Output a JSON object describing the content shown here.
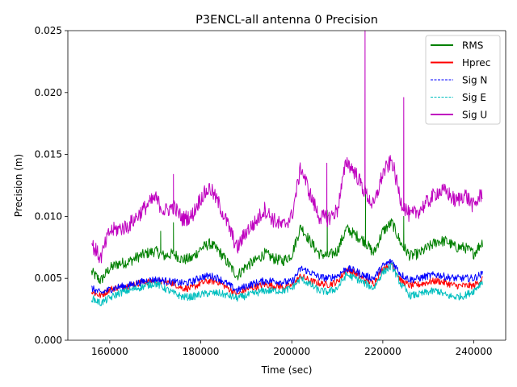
{
  "chart_data": {
    "type": "line",
    "title": "P3ENCL-all antenna 0 Precision",
    "xlabel": "Time (sec)",
    "ylabel": "Precision (m)",
    "xlim": [
      150800,
      247000
    ],
    "ylim": [
      0,
      0.025
    ],
    "xticks": [
      160000,
      180000,
      200000,
      220000,
      240000
    ],
    "xtick_labels": [
      "160000",
      "180000",
      "200000",
      "220000",
      "240000"
    ],
    "yticks": [
      0.0,
      0.005,
      0.01,
      0.015,
      0.02,
      0.025
    ],
    "ytick_labels": [
      "0.000",
      "0.005",
      "0.010",
      "0.015",
      "0.020",
      "0.025"
    ],
    "grid": false,
    "legend_position": "top-right",
    "series": [
      {
        "name": "RMS",
        "color": "#008000",
        "style": "solid",
        "x": [
          156000,
          158000,
          160000,
          162000,
          164000,
          166000,
          168000,
          170000,
          172000,
          174000,
          176000,
          178000,
          180000,
          182000,
          184000,
          186000,
          188000,
          190000,
          192000,
          194000,
          196000,
          198000,
          200000,
          202000,
          204000,
          206000,
          208000,
          210000,
          212000,
          214000,
          216000,
          218000,
          220000,
          222000,
          224000,
          226000,
          228000,
          230000,
          232000,
          234000,
          236000,
          238000,
          240000,
          242000
        ],
        "y": [
          0.0055,
          0.0048,
          0.0058,
          0.0062,
          0.0063,
          0.0067,
          0.007,
          0.0072,
          0.0068,
          0.007,
          0.0065,
          0.0066,
          0.0074,
          0.0078,
          0.0072,
          0.0062,
          0.0052,
          0.006,
          0.0064,
          0.007,
          0.0066,
          0.0064,
          0.0069,
          0.0092,
          0.008,
          0.007,
          0.0068,
          0.0072,
          0.009,
          0.0085,
          0.008,
          0.007,
          0.0088,
          0.0095,
          0.0078,
          0.0068,
          0.007,
          0.0075,
          0.008,
          0.008,
          0.0075,
          0.0075,
          0.007,
          0.008
        ]
      },
      {
        "name": "Hprec",
        "color": "#ff0000",
        "style": "solid",
        "x": [
          156000,
          158000,
          160000,
          162000,
          164000,
          166000,
          168000,
          170000,
          172000,
          174000,
          176000,
          178000,
          180000,
          182000,
          184000,
          186000,
          188000,
          190000,
          192000,
          194000,
          196000,
          198000,
          200000,
          202000,
          204000,
          206000,
          208000,
          210000,
          212000,
          214000,
          216000,
          218000,
          220000,
          222000,
          224000,
          226000,
          228000,
          230000,
          232000,
          234000,
          236000,
          238000,
          240000,
          242000
        ],
        "y": [
          0.0039,
          0.0036,
          0.0041,
          0.0043,
          0.0044,
          0.0046,
          0.0047,
          0.0048,
          0.0047,
          0.0046,
          0.0042,
          0.0042,
          0.0046,
          0.0048,
          0.0047,
          0.0042,
          0.0037,
          0.0041,
          0.0043,
          0.0045,
          0.0044,
          0.0043,
          0.0044,
          0.0052,
          0.0048,
          0.0046,
          0.0045,
          0.0047,
          0.0057,
          0.0054,
          0.0049,
          0.0046,
          0.0058,
          0.0062,
          0.0048,
          0.0044,
          0.0045,
          0.0047,
          0.0048,
          0.0046,
          0.0044,
          0.0044,
          0.0044,
          0.005
        ]
      },
      {
        "name": "Sig N",
        "color": "#0000ff",
        "style": "dashed",
        "x": [
          156000,
          158000,
          160000,
          162000,
          164000,
          166000,
          168000,
          170000,
          172000,
          174000,
          176000,
          178000,
          180000,
          182000,
          184000,
          186000,
          188000,
          190000,
          192000,
          194000,
          196000,
          198000,
          200000,
          202000,
          204000,
          206000,
          208000,
          210000,
          212000,
          214000,
          216000,
          218000,
          220000,
          222000,
          224000,
          226000,
          228000,
          230000,
          232000,
          234000,
          236000,
          238000,
          240000,
          242000
        ],
        "y": [
          0.0042,
          0.0038,
          0.0041,
          0.0043,
          0.0044,
          0.0046,
          0.0048,
          0.0049,
          0.0048,
          0.0047,
          0.0046,
          0.0047,
          0.0051,
          0.0052,
          0.005,
          0.0045,
          0.004,
          0.0044,
          0.0046,
          0.0048,
          0.0048,
          0.0047,
          0.0047,
          0.0058,
          0.0055,
          0.0051,
          0.005,
          0.0052,
          0.0058,
          0.0056,
          0.0052,
          0.005,
          0.006,
          0.0064,
          0.0053,
          0.0049,
          0.005,
          0.0052,
          0.0053,
          0.0051,
          0.005,
          0.005,
          0.005,
          0.0054
        ]
      },
      {
        "name": "Sig E",
        "color": "#00bfbf",
        "style": "dashed",
        "x": [
          156000,
          158000,
          160000,
          162000,
          164000,
          166000,
          168000,
          170000,
          172000,
          174000,
          176000,
          178000,
          180000,
          182000,
          184000,
          186000,
          188000,
          190000,
          192000,
          194000,
          196000,
          198000,
          200000,
          202000,
          204000,
          206000,
          208000,
          210000,
          212000,
          214000,
          216000,
          218000,
          220000,
          222000,
          224000,
          226000,
          228000,
          230000,
          232000,
          234000,
          236000,
          238000,
          240000,
          242000
        ],
        "y": [
          0.0034,
          0.003,
          0.0034,
          0.0038,
          0.004,
          0.0042,
          0.0044,
          0.0046,
          0.0042,
          0.0038,
          0.0035,
          0.0035,
          0.0037,
          0.0038,
          0.0038,
          0.0036,
          0.0034,
          0.0036,
          0.0038,
          0.004,
          0.004,
          0.004,
          0.0042,
          0.005,
          0.0045,
          0.004,
          0.0039,
          0.0042,
          0.0053,
          0.005,
          0.0046,
          0.0042,
          0.0055,
          0.006,
          0.0045,
          0.0036,
          0.0037,
          0.0039,
          0.004,
          0.0036,
          0.0035,
          0.0036,
          0.004,
          0.0048
        ]
      },
      {
        "name": "Sig U",
        "color": "#bf00bf",
        "style": "solid",
        "x": [
          156000,
          158000,
          160000,
          162000,
          164000,
          166000,
          168000,
          170000,
          172000,
          174000,
          176000,
          178000,
          180000,
          182000,
          184000,
          186000,
          188000,
          190000,
          192000,
          194000,
          196000,
          198000,
          200000,
          202000,
          204000,
          206000,
          208000,
          210000,
          212000,
          214000,
          216000,
          218000,
          220000,
          222000,
          224000,
          226000,
          228000,
          230000,
          232000,
          234000,
          236000,
          238000,
          240000,
          242000
        ],
        "y": [
          0.0078,
          0.0066,
          0.0088,
          0.009,
          0.0092,
          0.01,
          0.0108,
          0.0115,
          0.0104,
          0.0108,
          0.0098,
          0.01,
          0.0115,
          0.0123,
          0.011,
          0.0093,
          0.0074,
          0.0088,
          0.0095,
          0.0106,
          0.0097,
          0.0092,
          0.01,
          0.014,
          0.0118,
          0.01,
          0.0098,
          0.0105,
          0.0145,
          0.0135,
          0.012,
          0.0108,
          0.0135,
          0.0145,
          0.0112,
          0.01,
          0.0105,
          0.0112,
          0.012,
          0.012,
          0.0112,
          0.0118,
          0.0108,
          0.012
        ]
      }
    ],
    "spikes": [
      {
        "series": "RMS",
        "x": [
          171200,
          174000,
          207800,
          216200,
          224600
        ],
        "y": [
          0.0088,
          0.0095,
          0.0105,
          0.0123,
          0.01
        ]
      },
      {
        "series": "Sig U",
        "x": [
          174000,
          207700,
          216100,
          224600
        ],
        "y": [
          0.0134,
          0.0143,
          0.025,
          0.0196
        ]
      }
    ]
  }
}
